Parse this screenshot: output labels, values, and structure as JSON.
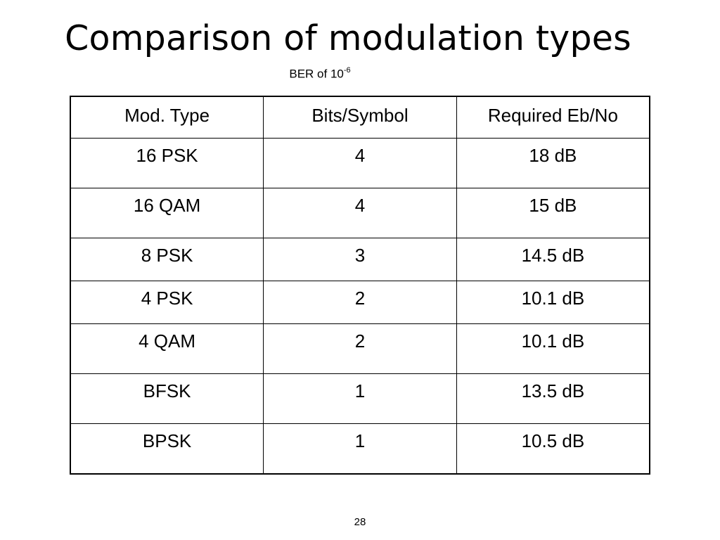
{
  "slide": {
    "title": "Comparison of modulation types",
    "subtitle_prefix": "BER of 10",
    "subtitle_exponent": "-6",
    "page_number": "28"
  },
  "table": {
    "headers": [
      "Mod. Type",
      "Bits/Symbol",
      "Required Eb/No"
    ],
    "rows": [
      [
        "16 PSK",
        "4",
        "18 dB"
      ],
      [
        "16 QAM",
        "4",
        "15 dB"
      ],
      [
        "8 PSK",
        "3",
        "14.5 dB"
      ],
      [
        "4 PSK",
        "2",
        "10.1 dB"
      ],
      [
        "4 QAM",
        "2",
        "10.1 dB"
      ],
      [
        "BFSK",
        "1",
        "13.5 dB"
      ],
      [
        "BPSK",
        "1",
        "10.5 dB"
      ]
    ]
  }
}
